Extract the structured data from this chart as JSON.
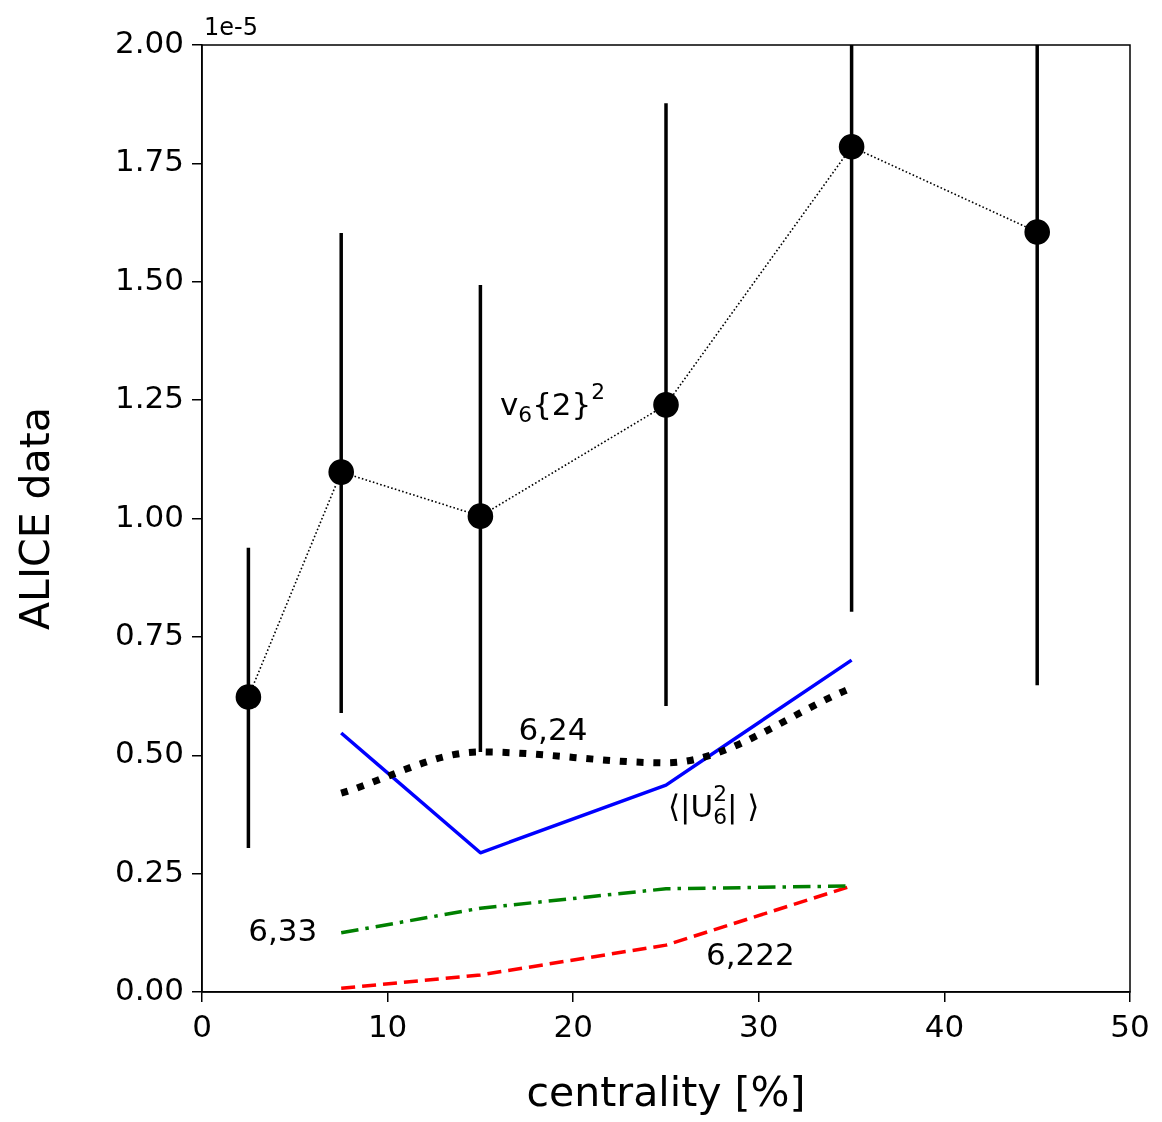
{
  "chart_data": {
    "type": "line",
    "xlabel": "centrality [%]",
    "ylabel": "ALICE data",
    "xlim": [
      0,
      50
    ],
    "xticks": [
      0,
      10,
      20,
      30,
      40,
      50
    ],
    "ylim": [
      0,
      2
    ],
    "yticks": [
      {
        "value": 0,
        "label": "0.00"
      },
      {
        "value": 0.25,
        "label": "0.25"
      },
      {
        "value": 0.5,
        "label": "0.50"
      },
      {
        "value": 0.75,
        "label": "0.75"
      },
      {
        "value": 1,
        "label": "1.00"
      },
      {
        "value": 1.25,
        "label": "1.25"
      },
      {
        "value": 1.5,
        "label": "1.50"
      },
      {
        "value": 1.75,
        "label": "1.75"
      },
      {
        "value": 2,
        "label": "2.00"
      }
    ],
    "grid": false,
    "legend": false,
    "series": [
      {
        "name": "v$_{6}${2}$^{2}$",
        "color": "#000000",
        "marker": "circle",
        "line_style": "dotted",
        "x": [
          2.5,
          7.5,
          15,
          25,
          35,
          45
        ],
        "values": [
          0.623,
          1.098,
          1.005,
          1.24,
          1.785,
          1.605
        ],
        "errors": [
          [
            0.304,
            0.938
          ],
          [
            0.589,
            1.603
          ],
          [
            0.507,
            1.493
          ],
          [
            0.604,
            1.877
          ],
          [
            0.803,
            2.0
          ],
          [
            0.648,
            2.0
          ]
        ]
      },
      {
        "name": "6,24",
        "color": "#000000",
        "marker": "none",
        "line_style": "dotted",
        "x": [
          7.5,
          15,
          25,
          35
        ],
        "values": [
          0.42,
          0.507,
          0.484,
          0.642
        ]
      },
      {
        "name": "⟨|U$_{6}$$^{2}$| ⟩",
        "color": "#0000ff",
        "marker": "none",
        "line_style": "solid",
        "x": [
          7.5,
          15,
          25,
          35
        ],
        "values": [
          0.547,
          0.294,
          0.437,
          0.701
        ]
      },
      {
        "name": "6,33",
        "color": "#008000",
        "marker": "none",
        "line_style": "dashdot",
        "x": [
          7.5,
          15,
          25,
          35
        ],
        "values": [
          0.125,
          0.177,
          0.218,
          0.224
        ]
      },
      {
        "name": "6,222",
        "color": "#ff0000",
        "marker": "none",
        "line_style": "dashed",
        "x": [
          7.5,
          15,
          25,
          35
        ],
        "values": [
          0.008,
          0.036,
          0.099,
          0.224
        ]
      }
    ],
    "annotations": [
      "1e-5"
    ]
  }
}
